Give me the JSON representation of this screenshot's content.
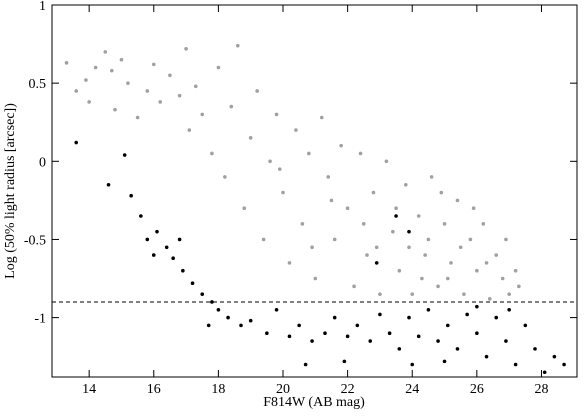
{
  "chart_data": {
    "type": "scatter",
    "x_label": "F814W (AB mag)",
    "y_label": "Log (50% light radius [arcsec])",
    "xlim": [
      12.85,
      29.1
    ],
    "ylim": [
      -1.38,
      1
    ],
    "xticks": [
      14,
      16,
      18,
      20,
      22,
      24,
      26,
      28
    ],
    "yticks": [
      -1,
      -0.5,
      0,
      0.5,
      1
    ],
    "reference_line": -0.9,
    "series": [
      {
        "color": "#a0a0a0",
        "x": [
          13.3,
          13.6,
          13.9,
          14.0,
          14.2,
          14.5,
          14.7,
          14.8,
          15.0,
          15.2,
          15.5,
          15.8,
          16.0,
          16.2,
          16.5,
          16.8,
          17.0,
          17.1,
          17.3,
          17.5,
          17.8,
          18.0,
          18.2,
          18.4,
          18.6,
          18.8,
          19.0,
          19.2,
          19.4,
          19.6,
          19.8,
          20.0,
          20.2,
          20.4,
          20.6,
          20.8,
          21.0,
          21.2,
          21.4,
          21.6,
          21.8,
          22.0,
          22.2,
          22.4,
          22.6,
          22.8,
          23.0,
          23.2,
          23.4,
          23.6,
          23.8,
          24.0,
          24.2,
          24.4,
          24.6,
          24.8,
          25.0,
          25.2,
          25.4,
          25.6,
          25.8,
          26.0,
          26.2,
          26.4,
          26.6,
          26.8,
          27.0,
          27.3,
          22.5,
          23.5,
          24.5,
          25.5,
          24.3,
          23.9,
          25.1,
          26.3,
          22.9,
          21.5,
          20.9,
          19.9,
          24.9,
          25.9,
          26.9,
          27.2
        ],
        "y": [
          0.63,
          0.45,
          0.52,
          0.38,
          0.6,
          0.7,
          0.58,
          0.33,
          0.65,
          0.5,
          0.28,
          0.45,
          0.62,
          0.38,
          0.55,
          0.42,
          0.72,
          0.2,
          0.48,
          0.3,
          0.05,
          0.6,
          -0.1,
          0.35,
          0.74,
          -0.3,
          0.15,
          0.45,
          -0.5,
          0.0,
          0.3,
          -0.2,
          -0.65,
          0.2,
          -0.4,
          0.05,
          -0.75,
          0.28,
          -0.1,
          -0.5,
          0.1,
          -0.3,
          -0.8,
          0.05,
          -0.6,
          -0.2,
          -0.85,
          0.0,
          -0.45,
          -0.7,
          -0.15,
          -0.85,
          -0.35,
          -0.6,
          -0.1,
          -0.8,
          -0.4,
          -0.65,
          -0.25,
          -0.85,
          -0.5,
          -0.7,
          -0.4,
          -0.88,
          -0.6,
          -0.75,
          -0.85,
          -0.8,
          -0.4,
          -0.3,
          -0.5,
          -0.55,
          -0.75,
          -0.55,
          -0.75,
          -0.65,
          -0.55,
          -0.25,
          -0.55,
          -0.05,
          -0.2,
          -0.3,
          -0.5,
          -0.7
        ]
      },
      {
        "color": "#000000",
        "x": [
          13.6,
          15.1,
          14.6,
          15.3,
          15.6,
          15.8,
          16.1,
          16.4,
          16.6,
          16.9,
          17.2,
          17.5,
          17.8,
          18.0,
          18.3,
          18.7,
          19.0,
          19.5,
          19.8,
          20.2,
          20.5,
          20.9,
          21.3,
          21.6,
          22.0,
          22.3,
          22.7,
          23.0,
          23.3,
          23.6,
          23.9,
          24.2,
          24.5,
          24.8,
          25.1,
          25.4,
          25.7,
          26.0,
          26.3,
          26.6,
          26.9,
          27.2,
          27.5,
          27.8,
          28.1,
          28.4,
          28.7,
          24.0,
          25.0,
          26.0,
          27.0,
          23.9,
          23.5,
          22.9,
          17.7,
          16.8,
          16.0,
          20.7,
          21.9
        ],
        "y": [
          0.12,
          0.04,
          -0.15,
          -0.22,
          -0.35,
          -0.5,
          -0.45,
          -0.55,
          -0.62,
          -0.7,
          -0.78,
          -0.85,
          -0.9,
          -0.95,
          -1.0,
          -1.05,
          -1.02,
          -1.1,
          -0.95,
          -1.12,
          -1.05,
          -1.15,
          -1.1,
          -1.0,
          -1.12,
          -1.05,
          -1.15,
          -0.98,
          -1.1,
          -1.2,
          -1.0,
          -1.12,
          -0.95,
          -1.15,
          -1.05,
          -1.2,
          -0.98,
          -1.1,
          -1.25,
          -1.0,
          -1.15,
          -1.3,
          -1.05,
          -1.2,
          -1.35,
          -1.25,
          -1.3,
          -1.3,
          -1.28,
          -0.93,
          -0.95,
          -0.45,
          -0.35,
          -0.65,
          -1.05,
          -0.5,
          -0.6,
          -1.3,
          -1.28
        ]
      }
    ]
  }
}
